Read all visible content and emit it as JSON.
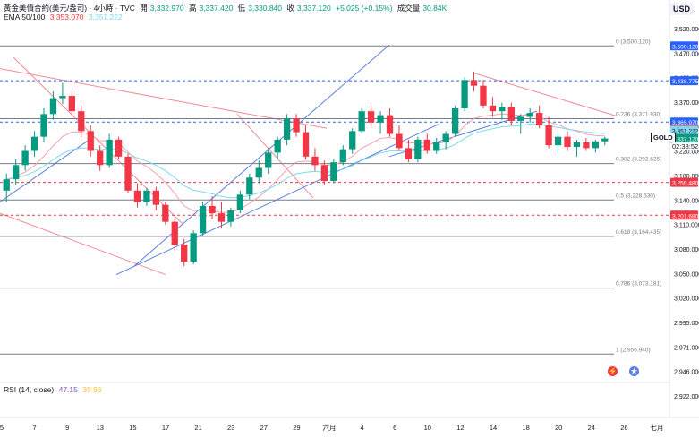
{
  "header": {
    "symbol_line": "黃金美債合約(美元/盎司) · 4小時 · TVC",
    "open_label": "開",
    "open_value": "3,332.970",
    "high_label": "高",
    "high_value": "3,337.420",
    "low_label": "低",
    "low_value": "3,330.840",
    "close_label": "收",
    "close_value": "3,337.120",
    "change": "+5.025 (+0.15%)",
    "volume_label": "成交量",
    "volume_value": "30.84K",
    "ema_label": "EMA 50/100",
    "ema_a": "3,353.070",
    "ema_b": "3,351.222",
    "rsi_label": "RSI (14, close)",
    "rsi_a": "47.15",
    "rsi_b": "39.96"
  },
  "currency_button": "USD",
  "colors": {
    "up": "#089981",
    "down": "#f23645",
    "ema50": "#f7a1a9",
    "ema100": "#7ed9f0",
    "trendline_blue": "#5b7fe0",
    "trendline_red": "#f28b96",
    "fib_line": "#787b86",
    "dashed_blue": "#2962ff",
    "dashed_red": "#f23645"
  },
  "chart_data": {
    "type": "candlestick",
    "symbol": "GOLD",
    "timeframe": "4小時",
    "ylim": [
      2910,
      3540
    ],
    "y_ticks": [
      "3,520.000",
      "3,470.000",
      "3,420.000",
      "3,370.000",
      "3,300.000",
      "3,220.000",
      "3,180.000",
      "3,140.000",
      "3,110.000",
      "3,080.000",
      "3,050.000",
      "3,020.000",
      "2,995.000",
      "2,971.000",
      "2,946.000",
      "2,922.000"
    ],
    "x_ticks": [
      "5",
      "7",
      "9",
      "13",
      "15",
      "17",
      "21",
      "23",
      "27",
      "29",
      "六月",
      "4",
      "6",
      "10",
      "12",
      "14",
      "18",
      "20",
      "24",
      "26",
      "七月"
    ],
    "fib_levels": [
      {
        "label": "0 (3,500.120)",
        "value": 3500.12,
        "badge": "3,500.120",
        "badge_color": "#2962ff"
      },
      {
        "label": "0.236 (3,371.930)",
        "value": 3371.93
      },
      {
        "label": "0.382 (3,292.625)",
        "value": 3292.625
      },
      {
        "label": "0.5 (3,228.530)",
        "value": 3228.53
      },
      {
        "label": "0.618 (3,164.435)",
        "value": 3164.435
      },
      {
        "label": "0.786 (3,073.181)",
        "value": 3073.181
      },
      {
        "label": "1 (2,956.940)",
        "value": 2956.94
      }
    ],
    "horizontal_lines": [
      {
        "value": 3438.775,
        "badge": "3,438.775",
        "color": "#2962ff",
        "style": "dashed"
      },
      {
        "value": 3365.97,
        "badge": "3,365.970",
        "color": "#2962ff",
        "style": "dashed"
      },
      {
        "value": 3259.48,
        "badge": "3,259.480",
        "color": "#f23645",
        "style": "dashed"
      },
      {
        "value": 3201.68,
        "badge": "3,201.680",
        "color": "#f23645",
        "style": "dashed"
      }
    ],
    "price_badges": [
      {
        "value": 3353.07,
        "text": "3,353.070",
        "color": "#f23645"
      },
      {
        "value": 3351.222,
        "text": "3,351.222",
        "color": "#7ed9f0",
        "text_color": "#131722"
      },
      {
        "value": 3337.12,
        "text": "3,337.120",
        "color": "#089981"
      }
    ],
    "last_price_label": "GOLD",
    "countdown": "02:38:52",
    "candles": [
      [
        3245,
        3275,
        3225,
        3265
      ],
      [
        3265,
        3300,
        3255,
        3290
      ],
      [
        3290,
        3325,
        3280,
        3315
      ],
      [
        3315,
        3350,
        3305,
        3340
      ],
      [
        3340,
        3390,
        3330,
        3380
      ],
      [
        3380,
        3420,
        3370,
        3408
      ],
      [
        3408,
        3435,
        3398,
        3412
      ],
      [
        3412,
        3420,
        3375,
        3385
      ],
      [
        3385,
        3395,
        3340,
        3350
      ],
      [
        3350,
        3360,
        3305,
        3315
      ],
      [
        3315,
        3325,
        3280,
        3290
      ],
      [
        3290,
        3345,
        3285,
        3335
      ],
      [
        3335,
        3340,
        3300,
        3305
      ],
      [
        3305,
        3310,
        3240,
        3245
      ],
      [
        3245,
        3258,
        3215,
        3225
      ],
      [
        3225,
        3250,
        3218,
        3245
      ],
      [
        3245,
        3252,
        3210,
        3220
      ],
      [
        3220,
        3225,
        3185,
        3190
      ],
      [
        3190,
        3195,
        3140,
        3150
      ],
      [
        3150,
        3160,
        3112,
        3120
      ],
      [
        3120,
        3175,
        3115,
        3170
      ],
      [
        3170,
        3225,
        3165,
        3218
      ],
      [
        3218,
        3235,
        3195,
        3205
      ],
      [
        3205,
        3225,
        3180,
        3190
      ],
      [
        3190,
        3215,
        3182,
        3210
      ],
      [
        3210,
        3245,
        3205,
        3238
      ],
      [
        3238,
        3275,
        3230,
        3268
      ],
      [
        3268,
        3298,
        3258,
        3285
      ],
      [
        3285,
        3320,
        3275,
        3312
      ],
      [
        3312,
        3340,
        3300,
        3335
      ],
      [
        3335,
        3380,
        3325,
        3372
      ],
      [
        3372,
        3380,
        3340,
        3348
      ],
      [
        3348,
        3360,
        3300,
        3305
      ],
      [
        3305,
        3320,
        3280,
        3290
      ],
      [
        3290,
        3298,
        3255,
        3262
      ],
      [
        3262,
        3300,
        3258,
        3295
      ],
      [
        3295,
        3325,
        3290,
        3318
      ],
      [
        3318,
        3355,
        3310,
        3350
      ],
      [
        3350,
        3390,
        3345,
        3385
      ],
      [
        3385,
        3395,
        3355,
        3365
      ],
      [
        3365,
        3385,
        3345,
        3378
      ],
      [
        3378,
        3390,
        3340,
        3345
      ],
      [
        3345,
        3360,
        3315,
        3320
      ],
      [
        3320,
        3335,
        3295,
        3300
      ],
      [
        3300,
        3340,
        3295,
        3335
      ],
      [
        3335,
        3345,
        3310,
        3315
      ],
      [
        3315,
        3338,
        3310,
        3330
      ],
      [
        3330,
        3350,
        3318,
        3345
      ],
      [
        3345,
        3395,
        3340,
        3390
      ],
      [
        3390,
        3445,
        3385,
        3440
      ],
      [
        3440,
        3455,
        3420,
        3430
      ],
      [
        3430,
        3440,
        3390,
        3395
      ],
      [
        3395,
        3410,
        3375,
        3385
      ],
      [
        3385,
        3400,
        3370,
        3392
      ],
      [
        3392,
        3400,
        3360,
        3368
      ],
      [
        3368,
        3380,
        3345,
        3375
      ],
      [
        3375,
        3390,
        3365,
        3382
      ],
      [
        3382,
        3395,
        3355,
        3360
      ],
      [
        3360,
        3375,
        3320,
        3325
      ],
      [
        3325,
        3345,
        3310,
        3340
      ],
      [
        3340,
        3350,
        3315,
        3322
      ],
      [
        3322,
        3335,
        3305,
        3330
      ],
      [
        3330,
        3338,
        3315,
        3320
      ],
      [
        3320,
        3335,
        3312,
        3332
      ],
      [
        3332,
        3340,
        3325,
        3337
      ]
    ]
  },
  "chart_data_rsi": {
    "type": "line",
    "title": "RSI (14, close)",
    "series": [
      {
        "name": "RSI",
        "values": [
          47.15
        ]
      },
      {
        "name": "MA",
        "values": [
          39.96
        ]
      }
    ]
  }
}
